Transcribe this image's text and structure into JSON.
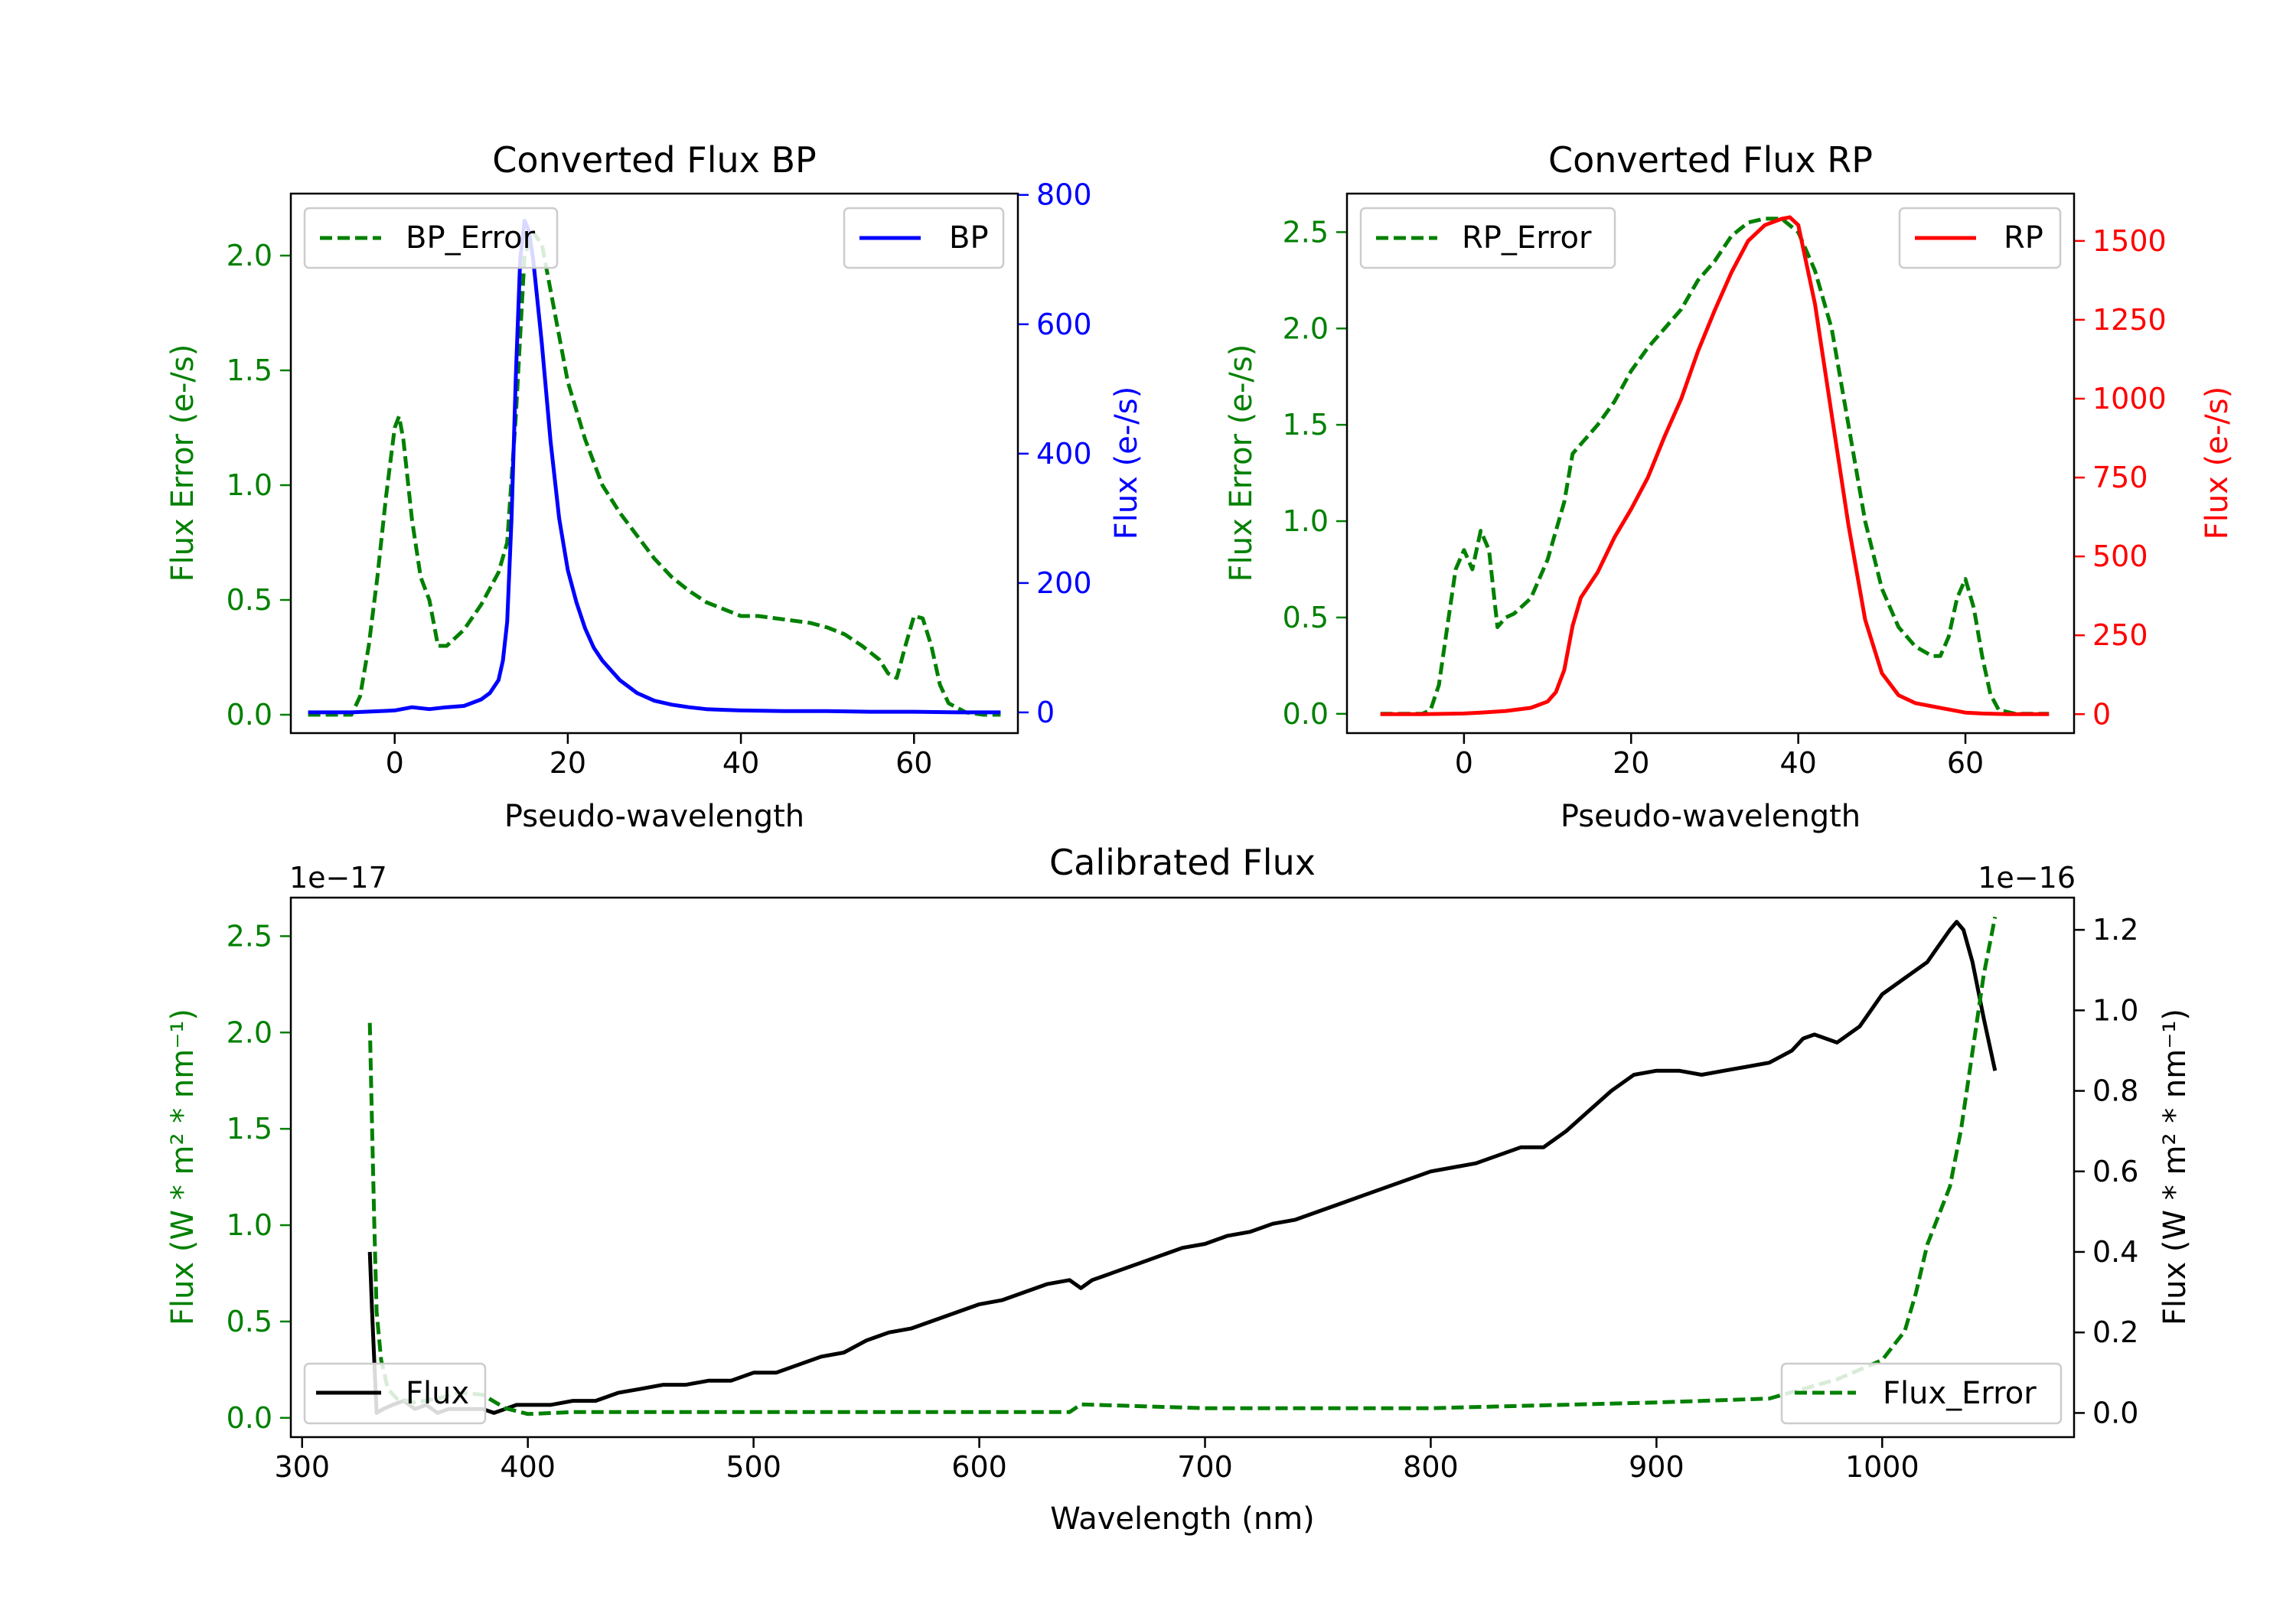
{
  "colors": {
    "green": "#008000",
    "blue": "#0000ff",
    "red": "#ff0000",
    "black": "#000000"
  },
  "chart_data": [
    {
      "id": "bp",
      "type": "line",
      "title": "Converted Flux BP",
      "xlabel": "Pseudo-wavelength",
      "xlim": [
        -12,
        72
      ],
      "xticks": [
        0,
        20,
        40,
        60
      ],
      "ylabel_left": "Flux Error (e-/s)",
      "ylim_left": [
        -0.08,
        2.27
      ],
      "yticks_left": [
        0.0,
        0.5,
        1.0,
        1.5,
        2.0
      ],
      "ylabel_right": "Flux (e-/s)",
      "ylim_right": [
        -32,
        802
      ],
      "yticks_right": [
        0,
        200,
        400,
        600,
        800
      ],
      "series": [
        {
          "name": "BP_Error",
          "axis": "left",
          "style": "dashed",
          "color": "#008000",
          "x": [
            -10,
            -5,
            -4,
            -3,
            -2,
            -1,
            0,
            0.5,
            1,
            2,
            3,
            4,
            5,
            6,
            8,
            10,
            12,
            13,
            14,
            15,
            16,
            17,
            18,
            20,
            22,
            24,
            26,
            28,
            30,
            32,
            34,
            36,
            38,
            40,
            42,
            44,
            46,
            48,
            50,
            52,
            54,
            56,
            57,
            58,
            59,
            60,
            61,
            62,
            63,
            64,
            66,
            68,
            70
          ],
          "y": [
            0.0,
            0.0,
            0.08,
            0.3,
            0.6,
            0.95,
            1.25,
            1.3,
            1.2,
            0.85,
            0.6,
            0.5,
            0.3,
            0.3,
            0.37,
            0.48,
            0.62,
            0.75,
            1.3,
            2.0,
            2.1,
            2.05,
            1.85,
            1.45,
            1.2,
            1.0,
            0.88,
            0.78,
            0.68,
            0.6,
            0.54,
            0.49,
            0.46,
            0.43,
            0.43,
            0.42,
            0.41,
            0.4,
            0.38,
            0.35,
            0.3,
            0.24,
            0.18,
            0.16,
            0.3,
            0.43,
            0.42,
            0.3,
            0.13,
            0.05,
            0.01,
            0.0,
            0.0
          ]
        },
        {
          "name": "BP",
          "axis": "right",
          "style": "solid",
          "color": "#0000ff",
          "x": [
            -10,
            -5,
            0,
            2,
            4,
            6,
            8,
            10,
            11,
            12,
            12.5,
            13,
            13.5,
            14,
            14.5,
            15,
            15.5,
            16,
            17,
            18,
            19,
            20,
            21,
            22,
            23,
            24,
            26,
            28,
            30,
            32,
            34,
            36,
            38,
            40,
            45,
            50,
            55,
            60,
            65,
            70
          ],
          "y": [
            0,
            0,
            3,
            8,
            5,
            8,
            10,
            20,
            30,
            50,
            80,
            140,
            300,
            520,
            700,
            760,
            745,
            700,
            570,
            420,
            300,
            220,
            170,
            130,
            100,
            80,
            50,
            30,
            18,
            12,
            8,
            5,
            4,
            3,
            2,
            2,
            1,
            1,
            0,
            0
          ]
        }
      ]
    },
    {
      "id": "rp",
      "type": "line",
      "title": "Converted Flux RP",
      "xlabel": "Pseudo-wavelength",
      "xlim": [
        -14,
        73
      ],
      "xticks": [
        0,
        20,
        40,
        60
      ],
      "ylabel_left": "Flux Error (e-/s)",
      "ylim_left": [
        -0.1,
        2.7
      ],
      "yticks_left": [
        0.0,
        0.5,
        1.0,
        1.5,
        2.0,
        2.5
      ],
      "ylabel_right": "Flux (e-/s)",
      "ylim_right": [
        -60,
        1650
      ],
      "yticks_right": [
        0,
        250,
        500,
        750,
        1000,
        1250,
        1500
      ],
      "series": [
        {
          "name": "RP_Error",
          "axis": "left",
          "style": "dashed",
          "color": "#008000",
          "x": [
            -10,
            -5,
            -4,
            -3,
            -2,
            -1,
            0,
            1,
            2,
            3,
            4,
            5,
            6,
            8,
            10,
            12,
            13,
            14,
            16,
            18,
            20,
            22,
            24,
            26,
            28,
            30,
            32,
            34,
            36,
            38,
            40,
            41,
            42,
            44,
            46,
            48,
            50,
            52,
            54,
            56,
            57,
            58,
            59,
            60,
            61,
            62,
            63,
            64,
            66,
            70
          ],
          "y": [
            0.0,
            0.0,
            0.02,
            0.15,
            0.45,
            0.75,
            0.85,
            0.75,
            0.95,
            0.85,
            0.45,
            0.5,
            0.52,
            0.6,
            0.8,
            1.1,
            1.35,
            1.4,
            1.5,
            1.62,
            1.78,
            1.9,
            2.0,
            2.1,
            2.25,
            2.35,
            2.48,
            2.55,
            2.57,
            2.57,
            2.5,
            2.4,
            2.3,
            2.0,
            1.5,
            1.0,
            0.65,
            0.45,
            0.35,
            0.3,
            0.3,
            0.4,
            0.6,
            0.7,
            0.55,
            0.3,
            0.1,
            0.02,
            0.0,
            0.0
          ]
        },
        {
          "name": "RP",
          "axis": "right",
          "style": "solid",
          "color": "#ff0000",
          "x": [
            -10,
            -5,
            0,
            2,
            5,
            8,
            10,
            11,
            12,
            13,
            14,
            16,
            18,
            20,
            22,
            24,
            26,
            28,
            30,
            32,
            34,
            36,
            38,
            39,
            40,
            42,
            44,
            46,
            48,
            50,
            52,
            54,
            56,
            58,
            60,
            62,
            65,
            70
          ],
          "y": [
            0,
            0,
            2,
            5,
            10,
            20,
            40,
            70,
            140,
            280,
            370,
            450,
            560,
            650,
            750,
            880,
            1000,
            1150,
            1280,
            1400,
            1500,
            1550,
            1570,
            1575,
            1550,
            1300,
            950,
            600,
            300,
            130,
            60,
            35,
            25,
            15,
            5,
            2,
            0,
            0
          ]
        }
      ]
    },
    {
      "id": "cal",
      "type": "line",
      "title": "Calibrated Flux",
      "xlabel": "Wavelength (nm)",
      "xlim": [
        295,
        1085
      ],
      "xticks": [
        300,
        400,
        500,
        600,
        700,
        800,
        900,
        1000
      ],
      "ylabel_left": "Flux (W * m² * nm⁻¹)",
      "ylim_left": [
        -0.1,
        2.7
      ],
      "yticks_left": [
        0.0,
        0.5,
        1.0,
        1.5,
        2.0,
        2.5
      ],
      "offset_left": "1e−17",
      "ylabel_right": "Flux (W * m² * nm⁻¹)",
      "ylim_right": [
        -0.06,
        1.28
      ],
      "yticks_right": [
        0.0,
        0.2,
        0.4,
        0.6,
        0.8,
        1.0,
        1.2
      ],
      "offset_right": "1e−16",
      "series": [
        {
          "name": "Flux",
          "axis": "right",
          "style": "solid",
          "color": "#000000",
          "x": [
            330,
            331,
            333,
            336,
            340,
            345,
            350,
            355,
            360,
            365,
            370,
            375,
            380,
            385,
            390,
            395,
            400,
            410,
            420,
            430,
            440,
            450,
            460,
            470,
            480,
            490,
            500,
            510,
            520,
            530,
            540,
            550,
            560,
            570,
            580,
            590,
            600,
            610,
            620,
            630,
            640,
            645,
            650,
            655,
            660,
            670,
            680,
            690,
            700,
            710,
            720,
            730,
            740,
            750,
            760,
            770,
            780,
            790,
            800,
            810,
            820,
            830,
            840,
            850,
            860,
            870,
            880,
            890,
            900,
            910,
            920,
            930,
            940,
            950,
            960,
            965,
            970,
            975,
            980,
            990,
            1000,
            1010,
            1020,
            1025,
            1030,
            1033,
            1036,
            1040,
            1045,
            1050
          ],
          "y": [
            0.4,
            0.25,
            0.0,
            0.01,
            0.02,
            0.03,
            0.01,
            0.02,
            0.0,
            0.01,
            0.01,
            0.01,
            0.01,
            0.0,
            0.01,
            0.02,
            0.02,
            0.02,
            0.03,
            0.03,
            0.05,
            0.06,
            0.07,
            0.07,
            0.08,
            0.08,
            0.1,
            0.1,
            0.12,
            0.14,
            0.15,
            0.18,
            0.2,
            0.21,
            0.23,
            0.25,
            0.27,
            0.28,
            0.3,
            0.32,
            0.33,
            0.31,
            0.33,
            0.34,
            0.35,
            0.37,
            0.39,
            0.41,
            0.42,
            0.44,
            0.45,
            0.47,
            0.48,
            0.5,
            0.52,
            0.54,
            0.56,
            0.58,
            0.6,
            0.61,
            0.62,
            0.64,
            0.66,
            0.66,
            0.7,
            0.75,
            0.8,
            0.84,
            0.85,
            0.85,
            0.84,
            0.85,
            0.86,
            0.87,
            0.9,
            0.93,
            0.94,
            0.93,
            0.92,
            0.96,
            1.04,
            1.08,
            1.12,
            1.16,
            1.2,
            1.22,
            1.2,
            1.12,
            0.98,
            0.85
          ]
        },
        {
          "name": "Flux_Error",
          "axis": "left",
          "style": "dashed",
          "color": "#008000",
          "x": [
            330,
            331,
            332,
            333,
            335,
            338,
            342,
            350,
            360,
            370,
            380,
            390,
            400,
            420,
            450,
            500,
            550,
            600,
            640,
            645,
            700,
            800,
            900,
            950,
            980,
            1000,
            1010,
            1015,
            1020,
            1030,
            1035,
            1040,
            1045,
            1050
          ],
          "y": [
            2.05,
            1.5,
            1.0,
            0.55,
            0.3,
            0.15,
            0.1,
            0.08,
            0.1,
            0.13,
            0.12,
            0.05,
            0.02,
            0.03,
            0.03,
            0.03,
            0.03,
            0.03,
            0.03,
            0.07,
            0.05,
            0.05,
            0.08,
            0.1,
            0.2,
            0.3,
            0.45,
            0.65,
            0.9,
            1.2,
            1.5,
            1.9,
            2.3,
            2.6
          ]
        }
      ]
    }
  ]
}
